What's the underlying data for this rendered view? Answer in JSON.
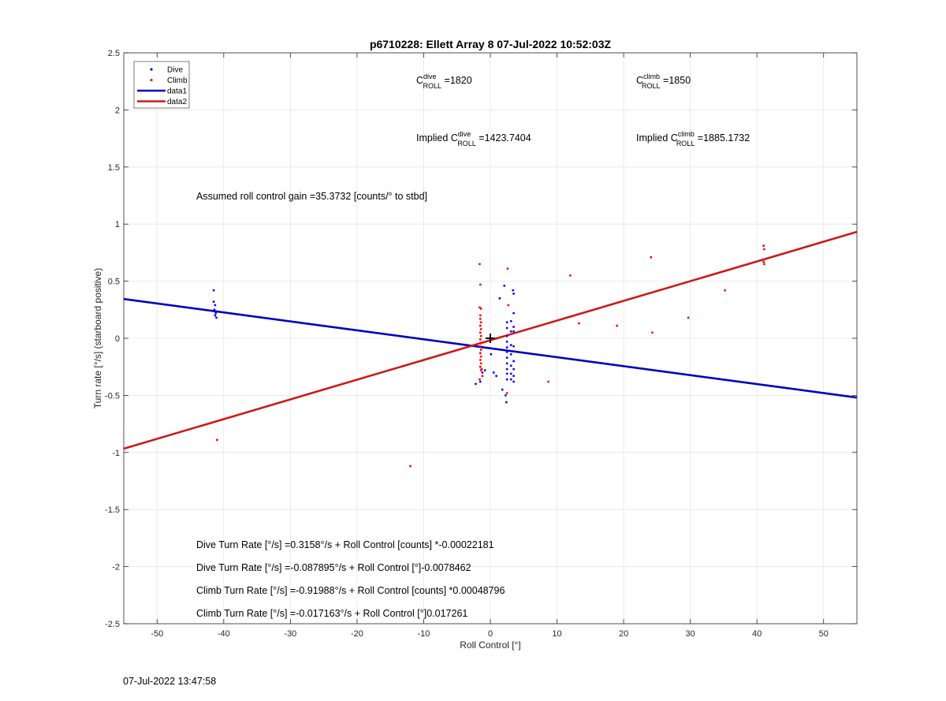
{
  "chart_data": {
    "type": "scatter",
    "title": "p6710228: Ellett Array 8 07-Jul-2022 10:52:03Z",
    "xlabel": "Roll Control [°]",
    "ylabel": "Turn rate [°/s] (starboard positive)",
    "xlim": [
      -55,
      55
    ],
    "ylim": [
      -2.5,
      2.5
    ],
    "xticks": [
      -50,
      -40,
      -30,
      -20,
      -10,
      0,
      10,
      20,
      30,
      40,
      50
    ],
    "yticks": [
      -2.5,
      -2,
      -1.5,
      -1,
      -0.5,
      0,
      0.5,
      1,
      1.5,
      2,
      2.5
    ],
    "grid": true,
    "legend_position": "top-left",
    "legend": [
      {
        "label": "Dive",
        "kind": "marker",
        "color": "#0000ff"
      },
      {
        "label": "Climb",
        "kind": "marker",
        "color": "#ff0000"
      },
      {
        "label": "data1",
        "kind": "line",
        "color": "#0000bf"
      },
      {
        "label": "data2",
        "kind": "line",
        "color": "#cc1a1a"
      }
    ],
    "series": [
      {
        "name": "Dive",
        "color": "#0000ff",
        "points": [
          [
            -41.5,
            0.42
          ],
          [
            -41.5,
            0.32
          ],
          [
            -41.3,
            0.29
          ],
          [
            -41.4,
            0.25
          ],
          [
            -41.2,
            0.22
          ],
          [
            -41.3,
            0.2
          ],
          [
            -41.1,
            0.18
          ],
          [
            -2.2,
            -0.4
          ],
          [
            -1.5,
            -0.38
          ],
          [
            -1.2,
            -0.3
          ],
          [
            -0.8,
            -0.28
          ],
          [
            0.1,
            -0.14
          ],
          [
            0.5,
            -0.3
          ],
          [
            0.9,
            -0.33
          ],
          [
            1.4,
            0.35
          ],
          [
            1.8,
            -0.45
          ],
          [
            2.1,
            0.46
          ],
          [
            2.3,
            -0.5
          ],
          [
            2.4,
            -0.56
          ],
          [
            2.5,
            0.14
          ],
          [
            2.5,
            0.09
          ],
          [
            2.5,
            0.02
          ],
          [
            2.5,
            -0.03
          ],
          [
            2.5,
            -0.08
          ],
          [
            2.5,
            -0.12
          ],
          [
            2.5,
            -0.17
          ],
          [
            2.5,
            -0.22
          ],
          [
            2.5,
            -0.27
          ],
          [
            2.5,
            -0.31
          ],
          [
            2.5,
            -0.36
          ],
          [
            3.1,
            0.15
          ],
          [
            3.1,
            0.06
          ],
          [
            3.1,
            -0.06
          ],
          [
            3.1,
            -0.14
          ],
          [
            3.1,
            -0.24
          ],
          [
            3.1,
            -0.31
          ],
          [
            3.1,
            -0.36
          ],
          [
            3.4,
            0.42
          ],
          [
            3.5,
            0.39
          ],
          [
            3.5,
            0.22
          ],
          [
            3.5,
            0.1
          ],
          [
            3.5,
            0.06
          ],
          [
            3.5,
            -0.07
          ],
          [
            3.5,
            -0.2
          ],
          [
            3.5,
            -0.27
          ],
          [
            3.5,
            -0.33
          ],
          [
            3.5,
            -0.38
          ]
        ]
      },
      {
        "name": "Climb",
        "color": "#ff0000",
        "points": [
          [
            -41,
            -0.89
          ],
          [
            -12,
            -1.12
          ],
          [
            -1.6,
            0.65
          ],
          [
            -1.5,
            0.47
          ],
          [
            -1.6,
            0.27
          ],
          [
            -1.4,
            0.26
          ],
          [
            -1.5,
            0.2
          ],
          [
            -1.5,
            0.17
          ],
          [
            -1.4,
            0.14
          ],
          [
            -1.5,
            0.11
          ],
          [
            -1.4,
            0.08
          ],
          [
            -1.5,
            0.05
          ],
          [
            -1.4,
            0.02
          ],
          [
            -1.5,
            -0.01
          ],
          [
            -1.4,
            -0.04
          ],
          [
            -1.5,
            -0.07
          ],
          [
            -1.4,
            -0.1
          ],
          [
            -1.5,
            -0.13
          ],
          [
            -1.4,
            -0.16
          ],
          [
            -1.5,
            -0.19
          ],
          [
            -1.4,
            -0.22
          ],
          [
            -1.5,
            -0.25
          ],
          [
            -1.4,
            -0.28
          ],
          [
            -1.2,
            -0.33
          ],
          [
            -1.6,
            -0.36
          ],
          [
            -1.3,
            -0.27
          ],
          [
            2.6,
            0.61
          ],
          [
            2.7,
            0.29
          ],
          [
            2.5,
            -0.48
          ],
          [
            8.7,
            -0.38
          ],
          [
            12,
            0.55
          ],
          [
            13.3,
            0.13
          ],
          [
            19,
            0.11
          ],
          [
            24.1,
            0.71
          ],
          [
            24.3,
            0.05
          ],
          [
            29.7,
            0.18
          ],
          [
            35.2,
            0.42
          ],
          [
            41,
            0.81
          ],
          [
            41.1,
            0.78
          ],
          [
            41,
            0.67
          ],
          [
            41.1,
            0.65
          ]
        ]
      }
    ],
    "fit_lines": [
      {
        "name": "data1",
        "color": "#0000bf",
        "x": [
          -55,
          55
        ],
        "y": [
          0.344,
          -0.519
        ]
      },
      {
        "name": "data2",
        "color": "#cc1a1a",
        "x": [
          -55,
          55
        ],
        "y": [
          -0.967,
          0.932
        ]
      }
    ],
    "marker_point": [
      0,
      0
    ],
    "annotations": {
      "c_dive": {
        "base": "C",
        "sup": "dive",
        "sub": "ROLL",
        "value": " =1820"
      },
      "c_climb": {
        "base": "C",
        "sup": "climb",
        "sub": "ROLL",
        "value": " =1850"
      },
      "implied_dive": {
        "prefix": "Implied C",
        "sup": "dive",
        "sub": "ROLL",
        "value": " =1423.7404"
      },
      "implied_climb": {
        "prefix": "Implied C",
        "sup": "climb",
        "sub": "ROLL",
        "value": " =1885.1732"
      },
      "gain": "Assumed roll control gain =35.3732 [counts/° to stbd]",
      "equations": [
        "Dive Turn Rate [°/s] =0.3158°/s + Roll Control [counts] *-0.00022181",
        "Dive Turn Rate [°/s] =-0.087895°/s + Roll Control [°]-0.0078462",
        "Climb Turn Rate [°/s] =-0.91988°/s + Roll Control [counts] *0.00048796",
        "Climb Turn Rate [°/s] =-0.017163°/s + Roll Control [°]0.017261"
      ]
    }
  },
  "footer": {
    "timestamp": "07-Jul-2022 13:47:58"
  }
}
